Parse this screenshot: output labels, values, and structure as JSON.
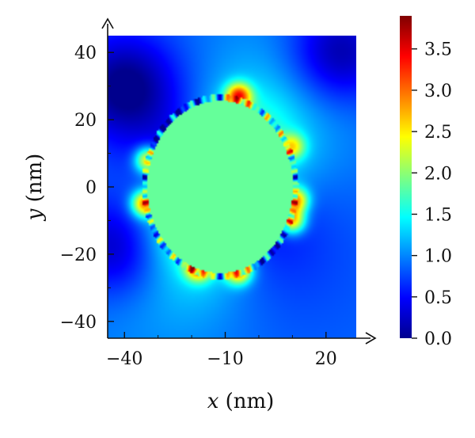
{
  "chart_data": {
    "type": "heatmap",
    "title": "",
    "xlabel": {
      "var": "x",
      "unit": "(nm)"
    },
    "ylabel": {
      "var": "y",
      "unit": "(nm)"
    },
    "xlim": [
      -45,
      29
    ],
    "ylim": [
      -45,
      45
    ],
    "x_ticks": [
      {
        "value": -40,
        "label": "−40"
      },
      {
        "value": -10,
        "label": "−10"
      },
      {
        "value": 20,
        "label": "20"
      }
    ],
    "y_ticks": [
      {
        "value": 40,
        "label": "40"
      },
      {
        "value": 20,
        "label": "20"
      },
      {
        "value": 0,
        "label": "0"
      },
      {
        "value": -20,
        "label": "−20"
      },
      {
        "value": -40,
        "label": "−40"
      }
    ],
    "grid": false,
    "colormap": "jet",
    "colorbar": {
      "range": [
        0,
        3.9
      ],
      "ticks": [
        {
          "value": 0.0,
          "label": "0.0"
        },
        {
          "value": 0.5,
          "label": "0.5"
        },
        {
          "value": 1.0,
          "label": "1.0"
        },
        {
          "value": 1.5,
          "label": "1.5"
        },
        {
          "value": 2.0,
          "label": "2.0"
        },
        {
          "value": 2.5,
          "label": "2.5"
        },
        {
          "value": 3.0,
          "label": "3.0"
        },
        {
          "value": 3.5,
          "label": "3.5"
        }
      ]
    },
    "particle": {
      "center_x": -11.5,
      "center_y": 0,
      "radius_x": 22,
      "radius_y": 26,
      "interior_value": 1.85
    },
    "background_value": 0.9,
    "hotspots": [
      {
        "x": -6,
        "y": 27,
        "value": 3.3
      },
      {
        "x": -18,
        "y": -24,
        "value": 3.2
      },
      {
        "x": -6,
        "y": -25,
        "value": 3.3
      },
      {
        "x": 10,
        "y": -10,
        "value": 3.1
      },
      {
        "x": 11,
        "y": -4,
        "value": 3.2
      },
      {
        "x": -33,
        "y": 8,
        "value": 3.0
      },
      {
        "x": -34,
        "y": -5,
        "value": 3.2
      },
      {
        "x": 10,
        "y": 12,
        "value": 2.4
      }
    ],
    "dark_lobes": [
      {
        "x": -40,
        "y": 30,
        "value": 0.1
      },
      {
        "x": -42,
        "y": -18,
        "value": 0.15
      },
      {
        "x": 24,
        "y": 40,
        "value": 0.4
      }
    ]
  }
}
